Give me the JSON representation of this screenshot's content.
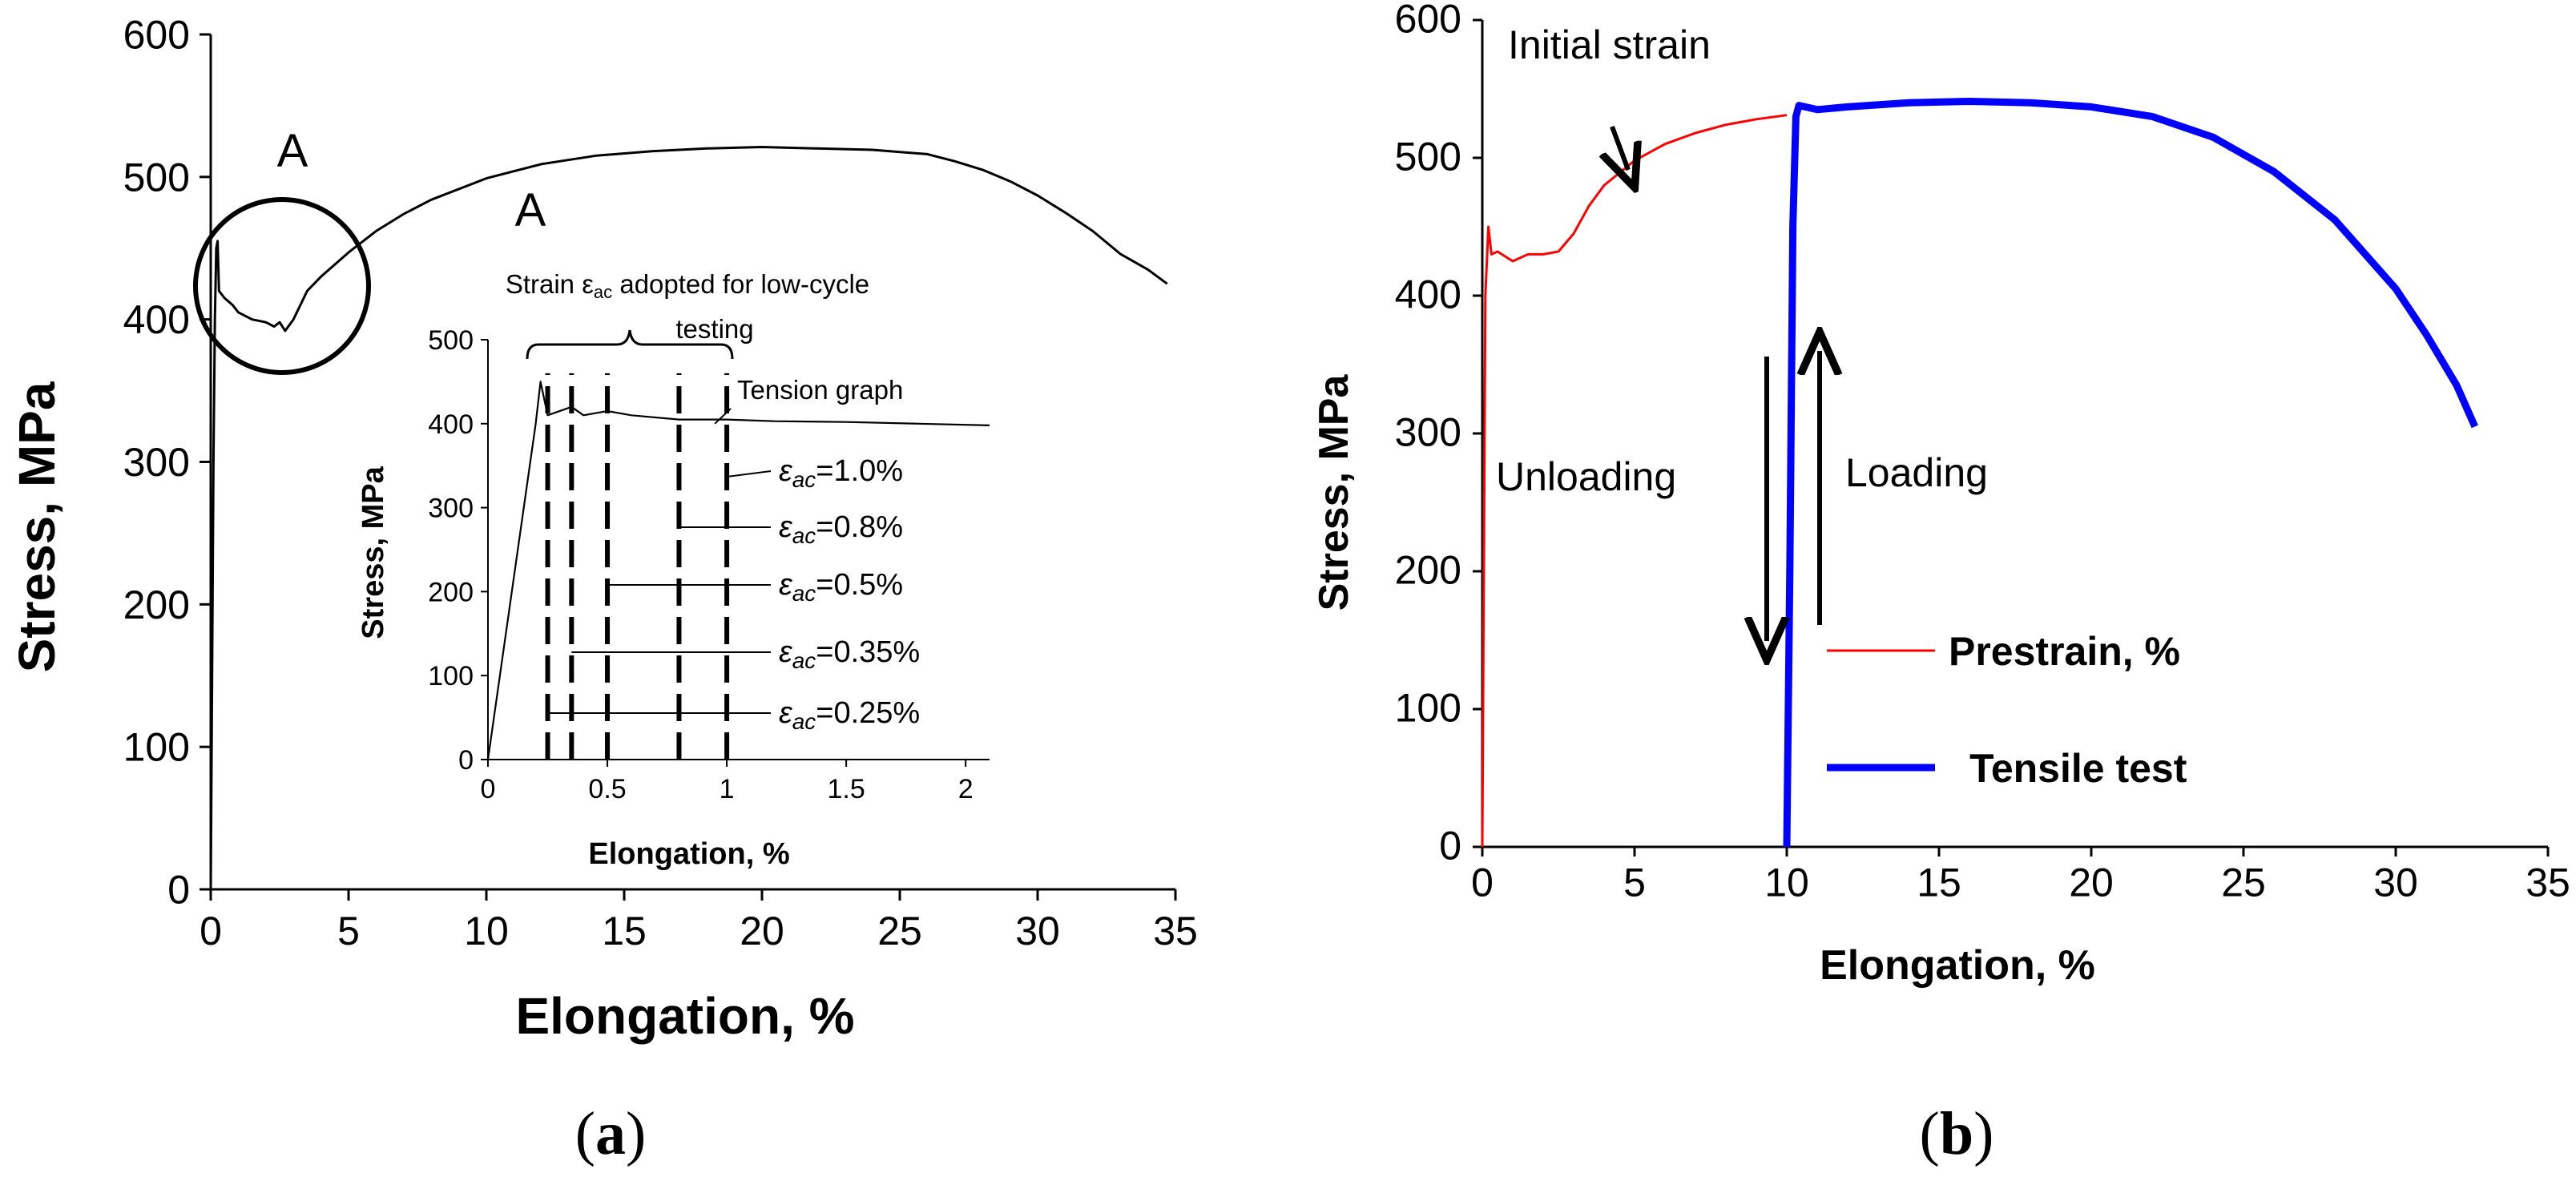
{
  "chart_data": [
    {
      "id": "a",
      "type": "line",
      "panel_label": {
        "open": "(",
        "letter": "a",
        "close": ")"
      },
      "title": "",
      "xlabel": "Elongation, %",
      "ylabel": "Stress, MPa",
      "xlim": [
        0,
        35
      ],
      "ylim": [
        0,
        600
      ],
      "xticks": [
        "0",
        "5",
        "10",
        "15",
        "20",
        "25",
        "30",
        "35"
      ],
      "yticks": [
        "0",
        "100",
        "200",
        "300",
        "400",
        "500",
        "600"
      ],
      "grid": false,
      "series": [
        {
          "name": "Tension graph",
          "color": "#000000",
          "x": [
            0,
            0.05,
            0.1,
            0.15,
            0.2,
            0.25,
            0.3,
            0.5,
            0.8,
            1.0,
            1.5,
            2.0,
            2.3,
            2.5,
            2.7,
            3.0,
            3.5,
            4.0,
            5,
            6,
            7,
            8,
            10,
            12,
            14,
            16,
            18,
            20,
            22,
            24,
            26,
            27,
            28,
            29,
            30,
            31,
            32,
            33,
            34,
            34.7
          ],
          "y": [
            0,
            150,
            300,
            400,
            450,
            455,
            420,
            415,
            410,
            405,
            400,
            398,
            395,
            398,
            392,
            400,
            420,
            430,
            447,
            462,
            474,
            484,
            499,
            509,
            515,
            518,
            520,
            521,
            520,
            519,
            516,
            511,
            505,
            497,
            487,
            475,
            462,
            446,
            435,
            425
          ]
        }
      ],
      "annotations": {
        "circle_label": "A",
        "curve_label": "A"
      },
      "inset": {
        "type": "line",
        "title": "Strain ε",
        "title_sub": "ac",
        "title_rest": " adopted for low-cycle",
        "title_line2": "testing",
        "xlabel": "Elongation, %",
        "ylabel": "Stress, MPa",
        "xlim": [
          0,
          2.1
        ],
        "ylim": [
          0,
          500
        ],
        "xticks": [
          "0",
          "0.5",
          "1",
          "1.5",
          "2"
        ],
        "yticks": [
          "0",
          "100",
          "200",
          "300",
          "400",
          "500"
        ],
        "series_label": "Tension graph",
        "x": [
          0,
          0.1,
          0.2,
          0.22,
          0.25,
          0.3,
          0.35,
          0.4,
          0.5,
          0.6,
          0.8,
          1.0,
          1.2,
          1.5,
          1.8,
          2.1
        ],
        "y": [
          0,
          200,
          400,
          450,
          410,
          415,
          420,
          410,
          415,
          410,
          405,
          405,
          403,
          402,
          400,
          398
        ],
        "vlines": [
          0.25,
          0.35,
          0.5,
          0.8,
          1.0
        ],
        "eps_symbol": "ε",
        "eps_sub": "ac",
        "strain_labels": [
          "=1.0%",
          "=0.8%",
          "=0.5%",
          "=0.35%",
          "=0.25%"
        ]
      }
    },
    {
      "id": "b",
      "type": "line",
      "panel_label": {
        "open": "(",
        "letter": "b",
        "close": ")"
      },
      "title": "",
      "xlabel": "Elongation, %",
      "ylabel": "Stress, MPa",
      "xlim": [
        0,
        35
      ],
      "ylim": [
        0,
        600
      ],
      "xticks": [
        "0",
        "5",
        "10",
        "15",
        "20",
        "25",
        "30",
        "35"
      ],
      "yticks": [
        "0",
        "100",
        "200",
        "300",
        "400",
        "500",
        "600"
      ],
      "grid": false,
      "series": [
        {
          "name": "Prestrain, %",
          "color": "#ff0000",
          "x": [
            0,
            0.05,
            0.1,
            0.2,
            0.3,
            0.5,
            1.0,
            1.5,
            2.0,
            2.5,
            3.0,
            3.5,
            4.0,
            5,
            6,
            7,
            8,
            9,
            10
          ],
          "y": [
            0,
            200,
            400,
            450,
            430,
            432,
            425,
            430,
            430,
            432,
            445,
            465,
            480,
            498,
            510,
            518,
            524,
            528,
            531
          ]
        },
        {
          "name": "Tensile test",
          "color": "#0000ff",
          "x": [
            10,
            10.1,
            10.2,
            10.3,
            10.4,
            11,
            12,
            14,
            16,
            18,
            20,
            22,
            24,
            26,
            28,
            30,
            31,
            32,
            32.6
          ],
          "y": [
            0,
            200,
            450,
            530,
            538,
            535,
            537,
            540,
            541,
            540,
            537,
            530,
            515,
            490,
            455,
            405,
            372,
            335,
            305
          ]
        }
      ],
      "annotations": {
        "initial_strain": "Initial strain",
        "unloading": "Unloading",
        "loading": "Loading"
      }
    }
  ]
}
